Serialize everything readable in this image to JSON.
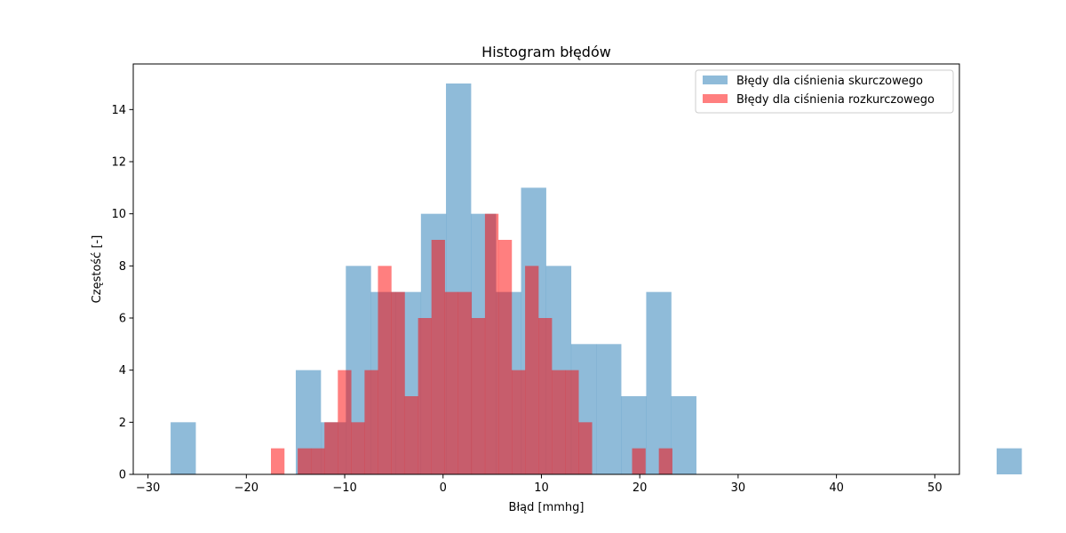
{
  "chart_data": {
    "type": "bar",
    "title": "Histogram błędów",
    "xlabel": "Błąd [mmhg]",
    "ylabel": "Częstość [-]",
    "xlim": [
      -31.5,
      52.5
    ],
    "ylim": [
      0,
      15.75
    ],
    "xticks": [
      -30,
      -20,
      -10,
      0,
      10,
      20,
      30,
      40,
      50
    ],
    "yticks": [
      0,
      2,
      4,
      6,
      8,
      10,
      12,
      14
    ],
    "legend_position": "top-right",
    "grid": false,
    "series": [
      {
        "name": "Błędy dla ciśnienia skurczowego",
        "color": "#1f77b4",
        "opacity": 0.5,
        "bin_start": -27.7,
        "bin_width": 2.545,
        "counts": [
          2,
          0,
          0,
          0,
          0,
          4,
          2,
          8,
          7,
          7,
          10,
          15,
          10,
          7,
          11,
          8,
          5,
          5,
          3,
          7,
          3,
          0,
          0,
          0,
          0,
          0,
          0,
          0,
          0,
          0,
          0,
          0,
          0,
          1
        ]
      },
      {
        "name": "Błędy dla ciśnienia rozkurczowego",
        "color": "#ff0000",
        "opacity": 0.5,
        "bin_start": -17.5,
        "bin_width": 1.36,
        "counts": [
          1,
          0,
          1,
          1,
          2,
          4,
          2,
          4,
          8,
          7,
          3,
          6,
          9,
          7,
          7,
          6,
          10,
          9,
          4,
          8,
          6,
          4,
          4,
          2,
          0,
          0,
          0,
          1,
          0,
          1
        ]
      }
    ]
  }
}
